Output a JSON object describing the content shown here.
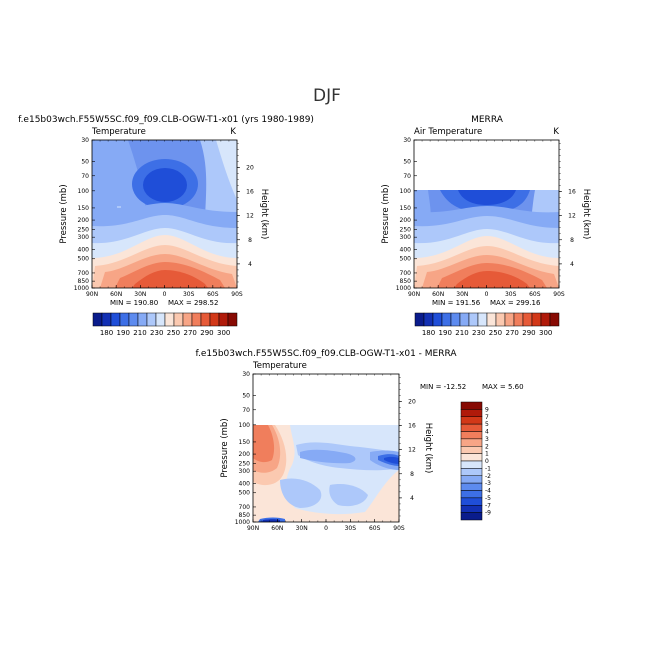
{
  "figure_title": "DJF",
  "chart_data": [
    {
      "type": "contour",
      "panel": "model",
      "title": "f.e15b03wch.F55W5SC.f09_f09.CLB-OGW-T1-x01 (yrs 1980-1989)",
      "variable_label": "Temperature",
      "units_label": "K",
      "ylabel": "Pressure (mb)",
      "ylabel_right": "Height (km)",
      "x_ticks": [
        "90N",
        "60N",
        "30N",
        "0",
        "30S",
        "60S",
        "90S"
      ],
      "y_ticks": [
        "30",
        "50",
        "70",
        "100",
        "150",
        "200",
        "250",
        "300",
        "400",
        "500",
        "700",
        "850",
        "1000"
      ],
      "height_ticks": [
        "20",
        "16",
        "12",
        "8",
        "4"
      ],
      "min_label": "MIN = 190.80",
      "max_label": "MAX = 298.52",
      "min": 190.8,
      "max": 298.52,
      "colorbar_labels": [
        "180",
        "190",
        "210",
        "230",
        "250",
        "270",
        "290",
        "300"
      ],
      "colorbar_colors": [
        "#0a1c8c",
        "#1230b4",
        "#1f4ed8",
        "#3d6fe6",
        "#5d8bef",
        "#86aaf5",
        "#adc8fa",
        "#d7e6fb",
        "#fbe5d8",
        "#fbc9b0",
        "#f7a586",
        "#f07e5c",
        "#e65a38",
        "#d23818",
        "#b01a0a",
        "#870a03"
      ],
      "data_top_mb": 30
    },
    {
      "type": "contour",
      "panel": "obs",
      "title": "MERRA",
      "variable_label": "Air Temperature",
      "units_label": "K",
      "ylabel": "Pressure (mb)",
      "ylabel_right": "Height (km)",
      "x_ticks": [
        "90N",
        "60N",
        "30N",
        "0",
        "30S",
        "60S",
        "90S"
      ],
      "y_ticks": [
        "30",
        "50",
        "70",
        "100",
        "150",
        "200",
        "250",
        "300",
        "400",
        "500",
        "700",
        "850",
        "1000"
      ],
      "height_ticks": [
        "16",
        "12",
        "8",
        "4"
      ],
      "min_label": "MIN = 191.56",
      "max_label": "MAX = 299.16",
      "min": 191.56,
      "max": 299.16,
      "colorbar_labels": [
        "180",
        "190",
        "210",
        "230",
        "250",
        "270",
        "290",
        "300"
      ],
      "colorbar_colors": [
        "#0a1c8c",
        "#1230b4",
        "#1f4ed8",
        "#3d6fe6",
        "#5d8bef",
        "#86aaf5",
        "#adc8fa",
        "#d7e6fb",
        "#fbe5d8",
        "#fbc9b0",
        "#f7a586",
        "#f07e5c",
        "#e65a38",
        "#d23818",
        "#b01a0a",
        "#870a03"
      ],
      "data_top_mb": 100
    },
    {
      "type": "contour",
      "panel": "difference",
      "title": "f.e15b03wch.F55W5SC.f09_f09.CLB-OGW-T1-x01 - MERRA",
      "variable_label": "Temperature",
      "ylabel": "Pressure (mb)",
      "ylabel_right": "Height (km)",
      "x_ticks": [
        "90N",
        "60N",
        "30N",
        "0",
        "30S",
        "60S",
        "90S"
      ],
      "y_ticks": [
        "30",
        "50",
        "70",
        "100",
        "150",
        "200",
        "250",
        "300",
        "400",
        "500",
        "700",
        "850",
        "1000"
      ],
      "height_ticks": [
        "20",
        "16",
        "12",
        "8",
        "4"
      ],
      "min_label": "MIN = -12.52",
      "max_label": "MAX = 5.60",
      "min": -12.52,
      "max": 5.6,
      "colorbar_labels": [
        "9",
        "7",
        "5",
        "4",
        "3",
        "2",
        "1",
        "0",
        "-1",
        "-2",
        "-3",
        "-4",
        "-5",
        "-7",
        "-9"
      ],
      "colorbar_colors": [
        "#870a03",
        "#b01a0a",
        "#d23818",
        "#e65a38",
        "#f07e5c",
        "#f7a586",
        "#fbc9b0",
        "#fbe5d8",
        "#d7e6fb",
        "#adc8fa",
        "#86aaf5",
        "#5d8bef",
        "#3d6fe6",
        "#1f4ed8",
        "#1230b4",
        "#0a1c8c"
      ],
      "data_top_mb": 100
    }
  ]
}
